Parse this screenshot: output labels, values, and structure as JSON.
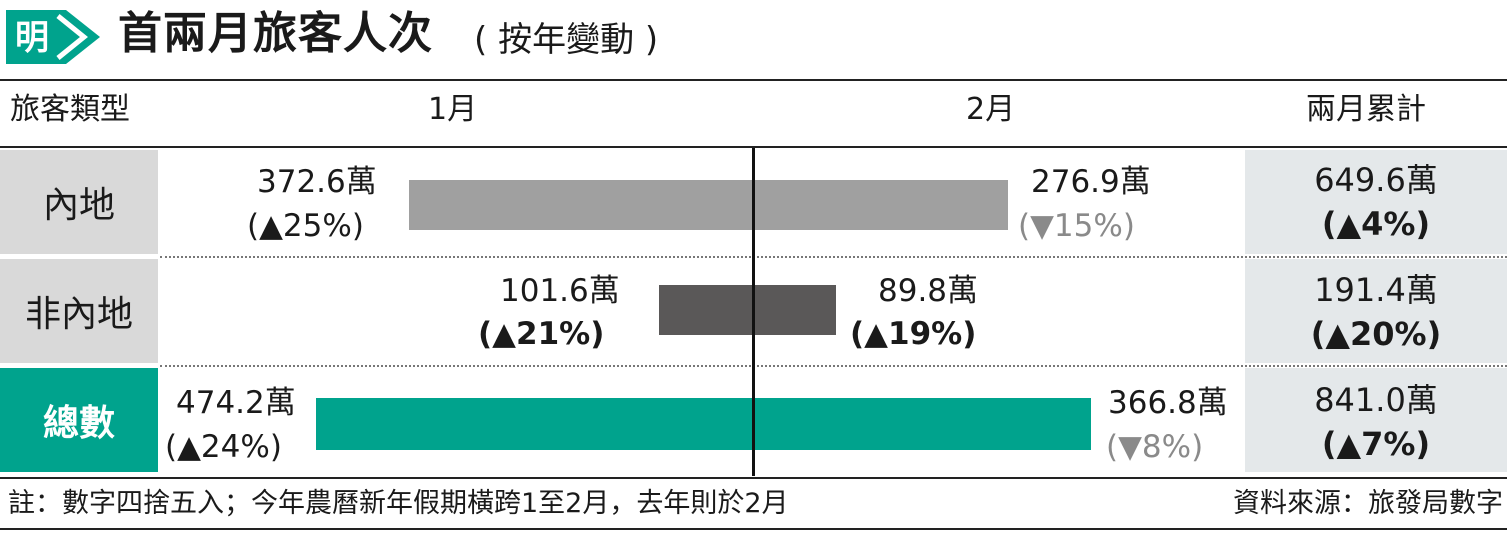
{
  "header": {
    "logo_char": "明",
    "title": "首兩月旅客人次",
    "subtitle": "( 按年變動 )"
  },
  "columns": {
    "type": "旅客類型",
    "jan": "1月",
    "feb": "2月",
    "total": "兩月累計"
  },
  "colors": {
    "mainland_bar": "#a0a0a0",
    "nonmainland_bar": "#5a5858",
    "total_bar": "#00a38d",
    "label_bg": "#d9d9d9",
    "cumulative_bg": "#e4e8ea"
  },
  "rows": [
    {
      "label": "內地",
      "jan_value": "372.6萬",
      "jan_change": "(▲25%)",
      "feb_value": "276.9萬",
      "feb_change": "(▼15%)",
      "cum_value": "649.6萬",
      "cum_change": "(▲4%)"
    },
    {
      "label": "非內地",
      "jan_value": "101.6萬",
      "jan_change": "(▲21%)",
      "feb_value": "89.8萬",
      "feb_change": "(▲19%)",
      "cum_value": "191.4萬",
      "cum_change": "(▲20%)"
    },
    {
      "label": "總數",
      "jan_value": "474.2萬",
      "jan_change": "(▲24%)",
      "feb_value": "366.8萬",
      "feb_change": "(▼8%)",
      "cum_value": "841.0萬",
      "cum_change": "(▲7%)"
    }
  ],
  "chart_data": {
    "type": "bar",
    "title": "首兩月旅客人次",
    "subtitle": "( 按年變動 )",
    "categories": [
      "內地",
      "非內地",
      "總數"
    ],
    "unit": "萬",
    "series": [
      {
        "name": "1月",
        "values": [
          372.6,
          101.6,
          474.2
        ],
        "yoy_change_pct": [
          25,
          21,
          24
        ]
      },
      {
        "name": "2月",
        "values": [
          276.9,
          89.8,
          366.8
        ],
        "yoy_change_pct": [
          -15,
          19,
          -8
        ]
      },
      {
        "name": "兩月累計",
        "values": [
          649.6,
          191.4,
          841.0
        ],
        "yoy_change_pct": [
          4,
          20,
          7
        ]
      }
    ]
  },
  "footer": {
    "note": "註：數字四捨五入；今年農曆新年假期橫跨1至2月，去年則於2月",
    "source": "資料來源：旅發局數字"
  }
}
